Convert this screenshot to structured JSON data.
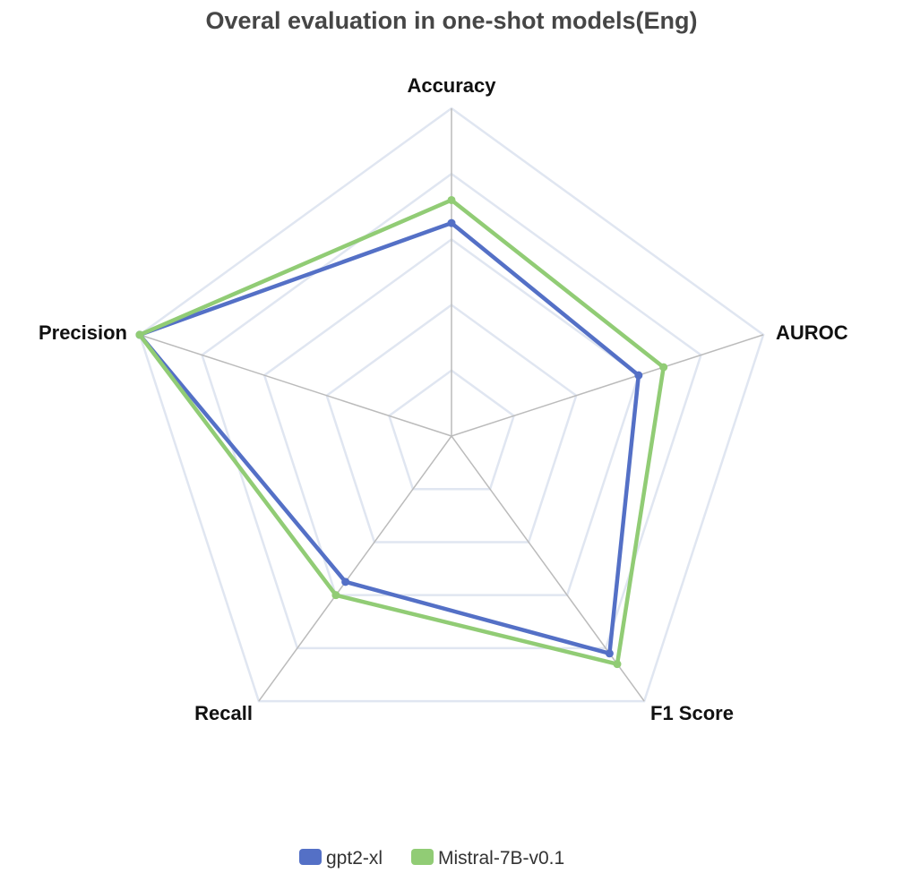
{
  "chart_data": {
    "type": "radar",
    "title": "Overal evaluation in one-shot models(Eng)",
    "axes": [
      "Accuracy",
      "AUROC",
      "F1 Score",
      "Recall",
      "Precision"
    ],
    "rlim": [
      0,
      1
    ],
    "rings": 5,
    "series": [
      {
        "name": "gpt2-xl",
        "color": "#5470c6",
        "values": [
          0.65,
          0.6,
          0.82,
          0.55,
          1.0
        ]
      },
      {
        "name": "Mistral-7B-v0.1",
        "color": "#91cc75",
        "values": [
          0.72,
          0.68,
          0.86,
          0.6,
          1.0
        ]
      }
    ],
    "legend_position": "bottom-center",
    "grid_color": "#e0e6f1",
    "spoke_color": "#bbbbbb"
  }
}
